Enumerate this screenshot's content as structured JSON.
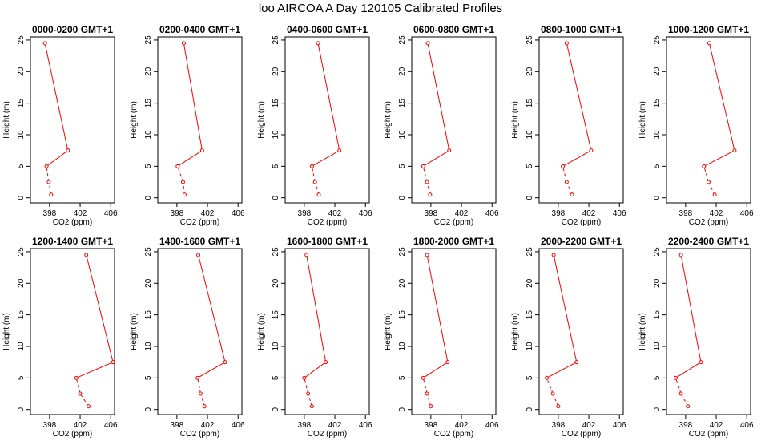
{
  "page": {
    "title": "loo AIRCOA A  Day 120105  Calibrated Profiles"
  },
  "chart_data": {
    "type": "line",
    "shared": {
      "xlabel": "CO2 (ppm)",
      "ylabel": "Height (m)",
      "xlim": [
        395.5,
        406.5
      ],
      "ylim": [
        -0.8,
        25.5
      ],
      "xticks": [
        398,
        402,
        406
      ],
      "yticks": [
        0,
        5,
        10,
        15,
        20,
        25
      ],
      "heights": [
        0.5,
        2.5,
        5,
        7.5,
        24.5
      ],
      "line_color": "#ff0000",
      "marker": "open-circle",
      "dashed_segments": "lower three levels dashed, upper segments solid",
      "grid": false,
      "legend": "none"
    },
    "panels": [
      {
        "title": "0000-0200 GMT+1",
        "x": [
          398.2,
          397.9,
          397.6,
          400.4,
          397.4
        ]
      },
      {
        "title": "0200-0400 GMT+1",
        "x": [
          399.0,
          398.8,
          398.1,
          401.3,
          398.9
        ]
      },
      {
        "title": "0400-0600 GMT+1",
        "x": [
          399.9,
          399.4,
          399.0,
          402.6,
          399.8
        ]
      },
      {
        "title": "0600-0800 GMT+1",
        "x": [
          397.9,
          397.5,
          397.0,
          400.4,
          397.6
        ]
      },
      {
        "title": "0800-1000 GMT+1",
        "x": [
          399.8,
          399.1,
          398.6,
          402.3,
          399.1
        ]
      },
      {
        "title": "1000-1200 GMT+1",
        "x": [
          401.8,
          401.0,
          400.4,
          404.4,
          401.1
        ]
      },
      {
        "title": "1200-1400 GMT+1",
        "x": [
          403.1,
          402.0,
          401.5,
          406.3,
          402.8
        ]
      },
      {
        "title": "1400-1600 GMT+1",
        "x": [
          401.6,
          401.1,
          400.7,
          404.3,
          400.8
        ]
      },
      {
        "title": "1600-1800 GMT+1",
        "x": [
          399.0,
          398.5,
          398.0,
          400.8,
          398.3
        ]
      },
      {
        "title": "1800-2000 GMT+1",
        "x": [
          398.0,
          397.5,
          397.0,
          400.2,
          397.5
        ]
      },
      {
        "title": "2000-2200 GMT+1",
        "x": [
          398.0,
          397.3,
          396.5,
          400.4,
          397.4
        ]
      },
      {
        "title": "2200-2400 GMT+1",
        "x": [
          398.3,
          397.4,
          396.7,
          400.0,
          397.4
        ]
      }
    ]
  }
}
